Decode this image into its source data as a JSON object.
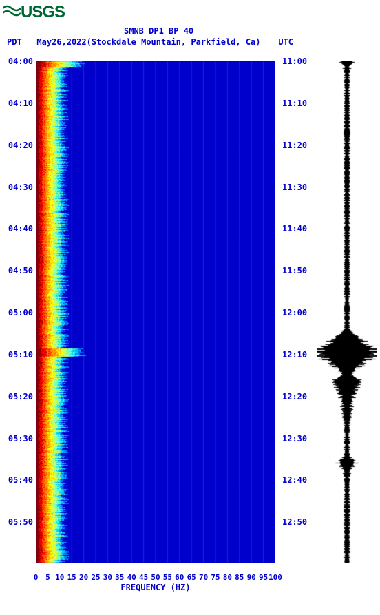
{
  "logo_text": "USGS",
  "title": "SMNB DP1 BP 40",
  "subtitle_left": "PDT",
  "subtitle_date": "May26,2022",
  "subtitle_station": "(Stockdale Mountain, Parkfield, Ca)",
  "subtitle_right": "UTC",
  "xlabel": "FREQUENCY (HZ)",
  "left_ticks": [
    "04:00",
    "04:10",
    "04:20",
    "04:30",
    "04:40",
    "04:50",
    "05:00",
    "05:10",
    "05:20",
    "05:30",
    "05:40",
    "05:50"
  ],
  "right_ticks": [
    "11:00",
    "11:10",
    "11:20",
    "11:30",
    "11:40",
    "11:50",
    "12:00",
    "12:10",
    "12:20",
    "12:30",
    "12:40",
    "12:50"
  ],
  "x_ticks": [
    "0",
    "5",
    "10",
    "15",
    "20",
    "25",
    "30",
    "35",
    "40",
    "45",
    "50",
    "55",
    "60",
    "65",
    "70",
    "75",
    "80",
    "85",
    "90",
    "95",
    "100"
  ],
  "spectrogram": {
    "type": "spectrogram",
    "xlim": [
      0,
      100
    ],
    "time_rows": 120,
    "colors": {
      "background": "#0000cc",
      "gradient": [
        "#8b0000",
        "#ff0000",
        "#ff6600",
        "#ffaa00",
        "#ffff00",
        "#ccff66",
        "#66ffcc",
        "#00ccff",
        "#0066ff",
        "#0000cc"
      ],
      "gridline": "#ffffff",
      "axis_tick": "#0000cc"
    },
    "grid_x_step": 5,
    "low_freq_band_hz": 12,
    "events": [
      {
        "time_frac": 0.005,
        "hz_extent": 18,
        "intensity": 1.0
      },
      {
        "time_frac": 0.58,
        "hz_extent": 20,
        "intensity": 1.0
      }
    ]
  },
  "seismogram": {
    "type": "waveform",
    "baseline_amp": 0.08,
    "color": "#000000",
    "events": [
      {
        "time_frac": 0.0,
        "amp": 0.25,
        "dur": 0.015
      },
      {
        "time_frac": 0.58,
        "amp": 1.0,
        "dur": 0.05
      },
      {
        "time_frac": 0.64,
        "amp": 0.45,
        "dur": 0.025
      },
      {
        "time_frac": 0.8,
        "amp": 0.3,
        "dur": 0.02
      }
    ]
  },
  "style": {
    "text_color": "#0000cc",
    "logo_color": "#006633",
    "font": "monospace",
    "font_size": 12
  }
}
